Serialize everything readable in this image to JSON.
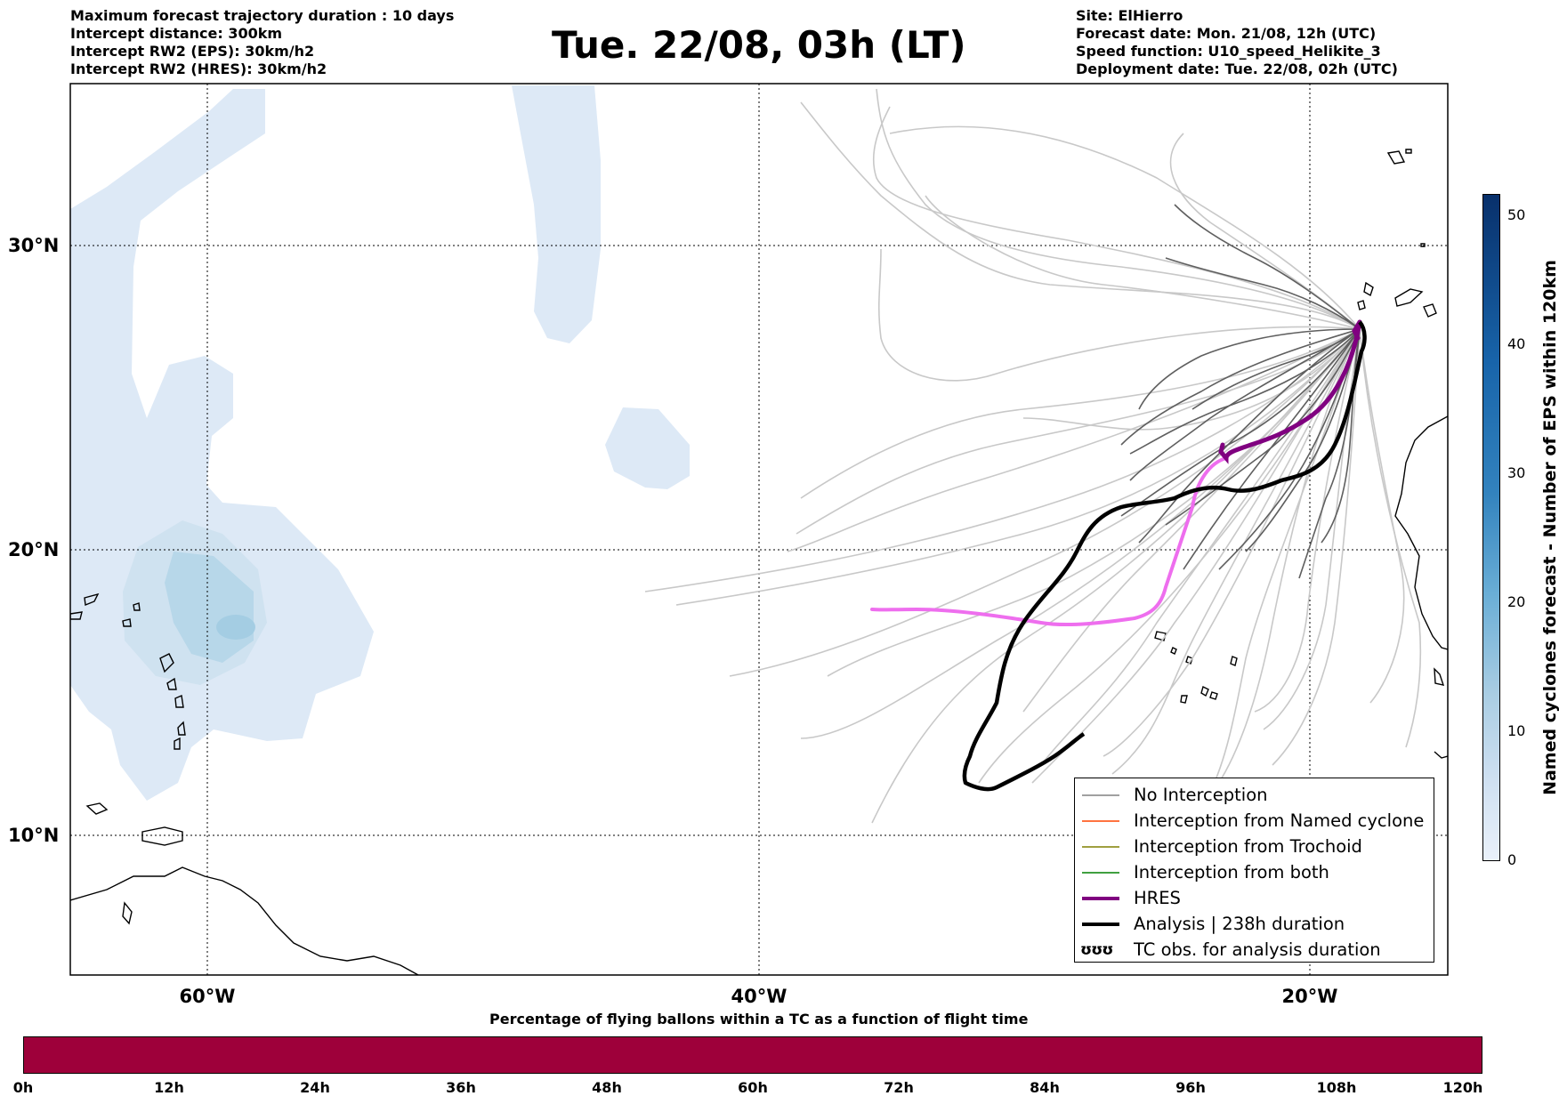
{
  "header": {
    "left_lines": [
      "Maximum forecast trajectory duration : 10 days",
      "Intercept distance: 300km",
      "Intercept RW2 (EPS):  30km/h2",
      "Intercept RW2 (HRES): 30km/h2"
    ],
    "title": "Tue. 22/08, 03h (LT)",
    "right_lines": [
      "Site: ElHierro",
      "Forecast date: Mon. 21/08, 12h (UTC)",
      "Speed function: U10_speed_Helikite_3",
      "Deployment date: Tue. 22/08, 02h (UTC)"
    ]
  },
  "map": {
    "lat_labels": [
      "30°N",
      "20°N",
      "10°N"
    ],
    "lon_labels": [
      "60°W",
      "40°W",
      "20°W"
    ],
    "colors": {
      "no_interception": "#7f7f7f",
      "ensemble_light": "#c8c8c8",
      "ensemble_dark": "#5a5a5a",
      "hres": "#800080",
      "hres_tail": "#ee6eee",
      "analysis": "#000000",
      "cyclone_fill": "#dce9f5"
    }
  },
  "legend": {
    "items": [
      {
        "label": "No Interception",
        "color": "#808080"
      },
      {
        "label": "Interception from Named cyclone",
        "color": "#ff4500"
      },
      {
        "label": "Interception from Trochoid",
        "color": "#808000"
      },
      {
        "label": "Interception from both",
        "color": "#008000"
      },
      {
        "label": "HRES",
        "color": "#800080"
      },
      {
        "label": "Analysis | 238h duration",
        "color": "#000000"
      }
    ],
    "tc_obs_glyph": "ʊʊʊ",
    "tc_obs_label": "TC obs. for analysis duration"
  },
  "time_bar": {
    "title": "Percentage of flying ballons within a TC as a function of flight time",
    "ticks": [
      "0h",
      "12h",
      "24h",
      "36h",
      "48h",
      "60h",
      "72h",
      "84h",
      "96h",
      "108h",
      "120h"
    ],
    "fill_color": "#9e003a"
  },
  "colorbar": {
    "title": "Named cyclones forecast - Number of EPS within 120km",
    "ticks": [
      "0",
      "10",
      "20",
      "30",
      "40",
      "50"
    ]
  }
}
